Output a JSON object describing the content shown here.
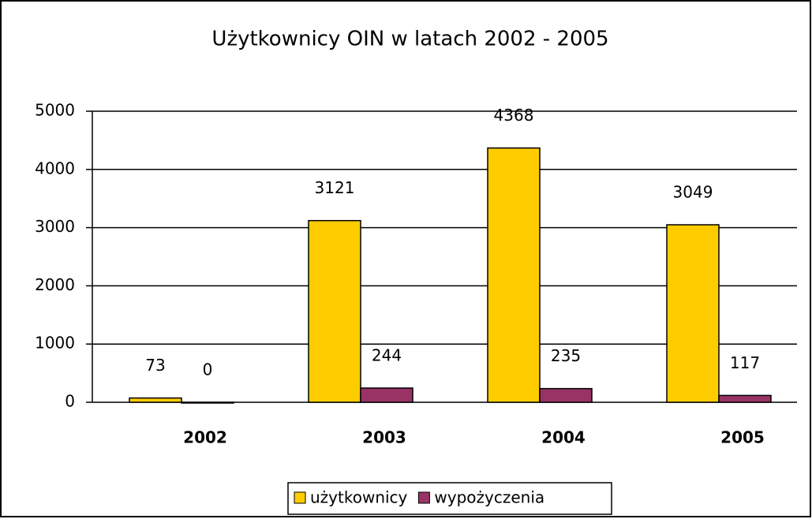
{
  "chart_data": {
    "type": "bar",
    "title": "Użytkownicy OIN w latach 2002 - 2005",
    "categories": [
      "2002",
      "2003",
      "2004",
      "2005"
    ],
    "series": [
      {
        "name": "użytkownicy",
        "color": "#ffcc00",
        "values": [
          73,
          3121,
          4368,
          3049
        ]
      },
      {
        "name": "wypożyczenia",
        "color": "#993366",
        "values": [
          0,
          244,
          235,
          117
        ]
      }
    ],
    "ylim": [
      0,
      5000
    ],
    "yticks": [
      0,
      1000,
      2000,
      3000,
      4000,
      5000
    ],
    "grid": true,
    "legend": "bottom"
  }
}
